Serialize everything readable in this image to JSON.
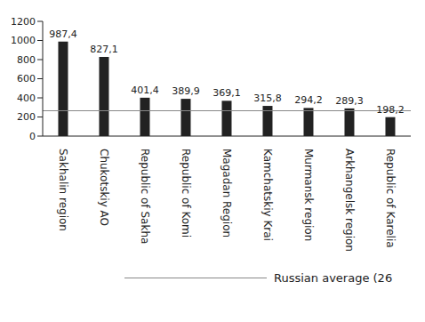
{
  "chart_data": {
    "type": "bar",
    "categories": [
      "Sakhalin region",
      "Chukotskiy AO",
      "Republic of Sakha",
      "Republic of Komi",
      "Magadan Region",
      "Kamchatskiy Krai",
      "Murmansk region",
      "Arkhangelsk region",
      "Republic of Karelia"
    ],
    "values": [
      987.4,
      827.1,
      401.4,
      389.9,
      369.1,
      315.8,
      294.2,
      289.3,
      198.2
    ],
    "value_labels": [
      "987,4",
      "827,1",
      "401,4",
      "389,9",
      "369,1",
      "315,8",
      "294,2",
      "289,3",
      "198,2"
    ],
    "data_labels": true,
    "color": "#222222",
    "ylim": [
      0,
      1200
    ],
    "yticks": [
      0,
      200,
      400,
      600,
      800,
      1000,
      1200
    ],
    "grid": false,
    "reference_line": {
      "value": 265,
      "label": "Russian average (26",
      "color": "#888888"
    }
  }
}
